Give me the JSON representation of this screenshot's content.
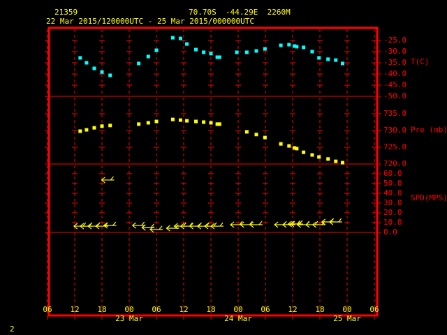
{
  "header": {
    "station": "21359",
    "position": "70.70S  -44.29E  2260M",
    "period": "22 Mar 2015/120000UTC - 25 Mar 2015/000000UTC"
  },
  "page_number": "2",
  "chart_data": [
    {
      "type": "scatter",
      "ylabel": "T(C)",
      "color": "#00ffff",
      "xlim": [
        6,
        78
      ],
      "xticks": [
        6,
        12,
        18,
        24,
        30,
        36,
        42,
        48,
        54,
        60,
        66,
        72,
        78
      ],
      "ylim": [
        -50,
        -19.4
      ],
      "yticks": [
        {
          "value": -25,
          "label": "-25.0"
        },
        {
          "value": -30,
          "label": "-30.0"
        },
        {
          "value": -35,
          "label": "-35.0"
        },
        {
          "value": -40,
          "label": "-40.0"
        },
        {
          "value": -45,
          "label": "-45.0"
        },
        {
          "value": -50,
          "label": "-50.0"
        }
      ],
      "x": [
        13.2,
        14.6,
        16.3,
        18,
        19.8,
        26.1,
        28.2,
        30,
        33.6,
        35.3,
        36.7,
        38.7,
        40.4,
        42,
        43.4,
        43.9,
        47.7,
        49.9,
        52,
        53.9,
        57.4,
        59.2,
        60.4,
        60.9,
        62.4,
        64.3,
        65.8,
        67.8,
        69.5,
        71
      ],
      "values": [
        -32.8,
        -35,
        -37.5,
        -39.1,
        -40.6,
        -35.3,
        -32.2,
        -29.4,
        -23.8,
        -24.1,
        -26.6,
        -29.1,
        -30.3,
        -30.9,
        -32.5,
        -32.5,
        -30.3,
        -30.3,
        -29.7,
        -28.8,
        -27.2,
        -26.9,
        -27.5,
        -27.8,
        -28.1,
        -30,
        -32.8,
        -33.4,
        -33.8,
        -35.3
      ]
    },
    {
      "type": "scatter",
      "ylabel": "Pre (mb)",
      "color": "#ffff00",
      "xlim": [
        6,
        78
      ],
      "xticks": [
        6,
        12,
        18,
        24,
        30,
        36,
        42,
        48,
        54,
        60,
        66,
        72,
        78
      ],
      "ylim": [
        720,
        740.2
      ],
      "yticks": [
        {
          "value": 735,
          "label": "735.0"
        },
        {
          "value": 730,
          "label": "730.0"
        },
        {
          "value": 725,
          "label": "725.0"
        },
        {
          "value": 720,
          "label": "720.0"
        }
      ],
      "x": [
        13.2,
        14.6,
        16.3,
        18,
        19.8,
        26.1,
        28.2,
        30,
        33.6,
        35.3,
        36.7,
        38.7,
        40.4,
        42,
        43.4,
        43.9,
        49.9,
        52,
        53.9,
        57.4,
        59.2,
        60.4,
        60.9,
        62.4,
        64.3,
        65.8,
        67.8,
        69.5,
        71
      ],
      "values": [
        729.8,
        730.2,
        730.8,
        731.3,
        731.5,
        731.9,
        732.3,
        732.7,
        733.3,
        733.1,
        732.9,
        732.7,
        732.5,
        732.3,
        731.9,
        731.9,
        729.6,
        728.8,
        727.9,
        726,
        725.4,
        724.8,
        724.6,
        723.5,
        722.7,
        722.1,
        721.5,
        720.8,
        720.4
      ]
    },
    {
      "type": "barbs",
      "ylabel": "SPD(MPS)",
      "color": "#ffff00",
      "xlim": [
        6,
        78
      ],
      "xticks": [
        {
          "value": 6,
          "label": "06"
        },
        {
          "value": 12,
          "label": "12"
        },
        {
          "value": 18,
          "label": "18"
        },
        {
          "value": 24,
          "label": "00"
        },
        {
          "value": 30,
          "label": "06"
        },
        {
          "value": 36,
          "label": "12"
        },
        {
          "value": 42,
          "label": "18"
        },
        {
          "value": 48,
          "label": "00"
        },
        {
          "value": 54,
          "label": "06"
        },
        {
          "value": 60,
          "label": "12"
        },
        {
          "value": 66,
          "label": "18"
        },
        {
          "value": 72,
          "label": "00"
        },
        {
          "value": 78,
          "label": "06"
        }
      ],
      "x_date_labels": [
        {
          "value": 24,
          "label": "23 Mar"
        },
        {
          "value": 48,
          "label": "24 Mar"
        },
        {
          "value": 72,
          "label": "25 Mar"
        }
      ],
      "ylim": [
        0,
        70
      ],
      "yticks": [
        {
          "value": 60,
          "label": "60.0"
        },
        {
          "value": 50,
          "label": "50.0"
        },
        {
          "value": 40,
          "label": "40.0"
        },
        {
          "value": 30,
          "label": "30.0"
        },
        {
          "value": 20,
          "label": "20.0"
        },
        {
          "value": 10,
          "label": "10.0"
        },
        {
          "value": 0,
          "label": "0.0"
        }
      ],
      "x": [
        13.2,
        14.6,
        16.3,
        18,
        19.3,
        19.8,
        26.1,
        28.2,
        30,
        33.6,
        35.3,
        36.7,
        38.7,
        40.4,
        42,
        43.4,
        47.7,
        49.9,
        52,
        57.4,
        59.2,
        60.4,
        60.9,
        62.4,
        64.3,
        65.8,
        67.8,
        69.5
      ],
      "values": [
        6.4,
        6.4,
        6.4,
        6.4,
        53.6,
        7.1,
        7.1,
        5,
        3,
        4.3,
        6.4,
        6.4,
        6.4,
        6.4,
        6.4,
        6.4,
        7.9,
        7.9,
        7.9,
        7.9,
        7.9,
        8.6,
        8.6,
        7.9,
        7.9,
        7.9,
        10.7,
        10.7
      ]
    }
  ]
}
